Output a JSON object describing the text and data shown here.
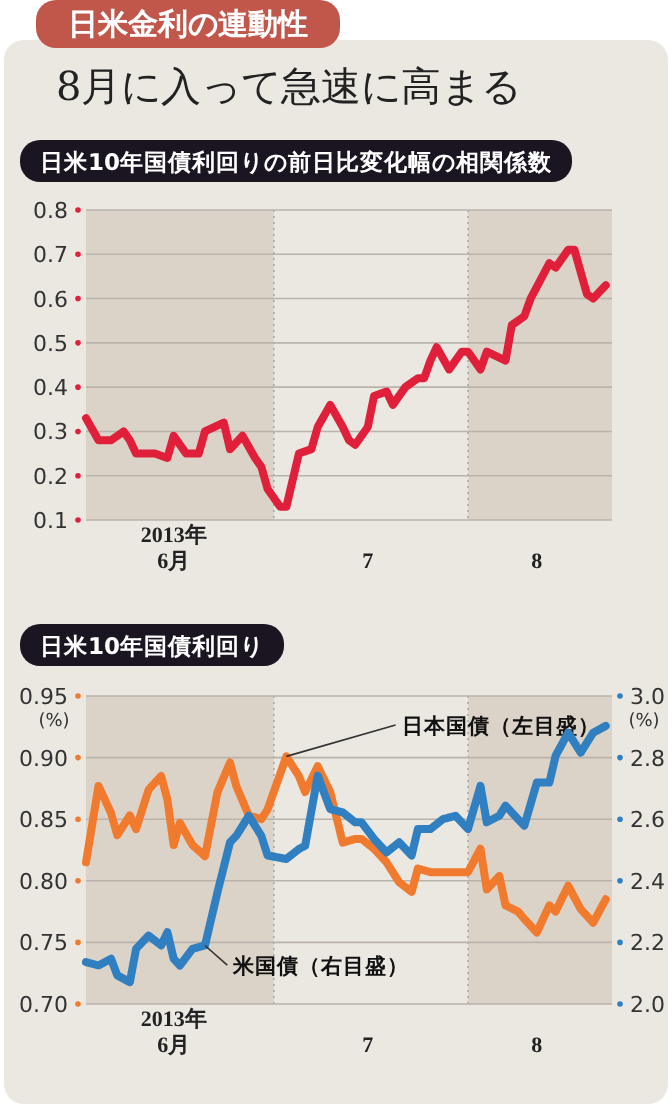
{
  "chart_data": [
    {
      "type": "line",
      "title": "日米10年国債利回りの前日比変化幅の相関係数",
      "annotations": [
        "日米金利の連動性",
        "8月に入って急速に高まる"
      ],
      "x": [
        "2013-06-01",
        "2013-06-03",
        "2013-06-05",
        "2013-06-07",
        "2013-06-08",
        "2013-06-09",
        "2013-06-12",
        "2013-06-14",
        "2013-06-15",
        "2013-06-17",
        "2013-06-19",
        "2013-06-20",
        "2013-06-23",
        "2013-06-24",
        "2013-06-26",
        "2013-06-28",
        "2013-06-29",
        "2013-06-30",
        "2013-07-02",
        "2013-07-03",
        "2013-07-05",
        "2013-07-07",
        "2013-07-08",
        "2013-07-10",
        "2013-07-12",
        "2013-07-13",
        "2013-07-14",
        "2013-07-16",
        "2013-07-17",
        "2013-07-19",
        "2013-07-20",
        "2013-07-22",
        "2013-07-24",
        "2013-07-25",
        "2013-07-26",
        "2013-07-27",
        "2013-07-29",
        "2013-07-31",
        "2013-08-01",
        "2013-08-03",
        "2013-08-04",
        "2013-08-07",
        "2013-08-08",
        "2013-08-10",
        "2013-08-11",
        "2013-08-14",
        "2013-08-15",
        "2013-08-17",
        "2013-08-18",
        "2013-08-20",
        "2013-08-21",
        "2013-08-23"
      ],
      "series": [
        {
          "color": "#e0203a",
          "values": [
            0.33,
            0.28,
            0.28,
            0.3,
            0.28,
            0.25,
            0.25,
            0.24,
            0.29,
            0.25,
            0.25,
            0.3,
            0.32,
            0.26,
            0.29,
            0.24,
            0.22,
            0.17,
            0.13,
            0.13,
            0.25,
            0.26,
            0.31,
            0.36,
            0.31,
            0.28,
            0.27,
            0.31,
            0.38,
            0.39,
            0.36,
            0.4,
            0.42,
            0.42,
            0.46,
            0.49,
            0.44,
            0.48,
            0.48,
            0.44,
            0.48,
            0.46,
            0.54,
            0.56,
            0.6,
            0.68,
            0.67,
            0.71,
            0.71,
            0.61,
            0.6,
            0.63
          ]
        }
      ],
      "xlim": [
        "2013-06-01",
        "2013-08-24"
      ],
      "xticks": [
        {
          "value": "2013-06-15",
          "label": "2013年\n6月"
        },
        {
          "value": "2013-07-16",
          "label": "7"
        },
        {
          "value": "2013-08-12",
          "label": "8"
        }
      ],
      "ylim": [
        0.1,
        0.8
      ],
      "yticks": [
        0.1,
        0.2,
        0.3,
        0.4,
        0.5,
        0.6,
        0.7,
        0.8
      ],
      "grid": "y",
      "ref_lines": [
        {
          "axis": "x",
          "value": "2013-07-01",
          "color": "#aaaaaa",
          "line_style": "dotted"
        },
        {
          "axis": "x",
          "value": "2013-08-01",
          "color": "#aaaaaa",
          "line_style": "dotted"
        }
      ],
      "bands": [
        {
          "axis": "x",
          "from": "2013-06-01",
          "to": "2013-07-01",
          "color": "#dcd3c8"
        },
        {
          "axis": "x",
          "from": "2013-08-01",
          "to": "2013-08-24",
          "color": "#dcd3c8"
        }
      ]
    },
    {
      "type": "line",
      "title": "日米10年国債利回り",
      "ylabel": "(%)",
      "y2label": "(%)",
      "x": [
        "2013-06-01",
        "2013-06-03",
        "2013-06-05",
        "2013-06-06",
        "2013-06-08",
        "2013-06-09",
        "2013-06-11",
        "2013-06-13",
        "2013-06-14",
        "2013-06-15",
        "2013-06-16",
        "2013-06-18",
        "2013-06-20",
        "2013-06-22",
        "2013-06-24",
        "2013-06-25",
        "2013-06-27",
        "2013-06-29",
        "2013-06-30",
        "2013-07-03",
        "2013-07-05",
        "2013-07-06",
        "2013-07-08",
        "2013-07-10",
        "2013-07-12",
        "2013-07-14",
        "2013-07-15",
        "2013-07-17",
        "2013-07-19",
        "2013-07-21",
        "2013-07-23",
        "2013-07-24",
        "2013-07-26",
        "2013-07-28",
        "2013-07-30",
        "2013-08-01",
        "2013-08-03",
        "2013-08-04",
        "2013-08-06",
        "2013-08-07",
        "2013-08-09",
        "2013-08-10",
        "2013-08-12",
        "2013-08-14",
        "2013-08-15",
        "2013-08-17",
        "2013-08-19",
        "2013-08-21",
        "2013-08-23"
      ],
      "series": [
        {
          "name": "日本国債（左目盛）",
          "color": "#f07b2e",
          "values": [
            0.815,
            0.877,
            0.855,
            0.837,
            0.853,
            0.842,
            0.874,
            0.885,
            0.866,
            0.829,
            0.847,
            0.829,
            0.82,
            0.872,
            0.896,
            0.877,
            0.853,
            0.85,
            0.858,
            0.901,
            0.885,
            0.872,
            0.893,
            0.872,
            0.831,
            0.834,
            0.834,
            0.826,
            0.815,
            0.799,
            0.791,
            0.81,
            0.807,
            0.807,
            0.807,
            0.807,
            0.826,
            0.793,
            0.804,
            0.78,
            0.775,
            0.769,
            0.758,
            0.78,
            0.775,
            0.796,
            0.777,
            0.766,
            0.785
          ]
        },
        {
          "name": "米国債（右目盛）",
          "color": "#2f7fc1",
          "axis": "y2",
          "values": [
            2.136,
            2.125,
            2.147,
            2.093,
            2.071,
            2.179,
            2.222,
            2.19,
            2.233,
            2.147,
            2.125,
            2.179,
            2.19,
            2.363,
            2.525,
            2.546,
            2.611,
            2.546,
            2.482,
            2.471,
            2.503,
            2.514,
            2.741,
            2.633,
            2.622,
            2.59,
            2.59,
            2.536,
            2.492,
            2.525,
            2.482,
            2.568,
            2.568,
            2.6,
            2.611,
            2.568,
            2.708,
            2.59,
            2.611,
            2.644,
            2.6,
            2.579,
            2.719,
            2.719,
            2.806,
            2.881,
            2.816,
            2.881,
            2.903
          ]
        }
      ],
      "xlim": [
        "2013-06-01",
        "2013-08-24"
      ],
      "xticks": [
        {
          "value": "2013-06-15",
          "label": "2013年\n6月"
        },
        {
          "value": "2013-07-16",
          "label": "7"
        },
        {
          "value": "2013-08-12",
          "label": "8"
        }
      ],
      "ylim": [
        0.7,
        0.95
      ],
      "yticks": [
        {
          "value": 0.7,
          "label": "0.70"
        },
        0.75,
        {
          "value": 0.8,
          "label": "0.80"
        },
        0.85,
        {
          "value": 0.9,
          "label": "0.90"
        },
        0.95
      ],
      "y2lim": [
        2.0,
        3.0
      ],
      "y2ticks": [
        {
          "value": 2.0,
          "label": "2.0"
        },
        2.2,
        2.4,
        2.6,
        2.8,
        {
          "value": 3.0,
          "label": "3.0"
        }
      ],
      "grid": "y",
      "ref_lines": [
        {
          "axis": "x",
          "value": "2013-07-01",
          "color": "#aaaaaa",
          "line_style": "dotted"
        },
        {
          "axis": "x",
          "value": "2013-08-01",
          "color": "#aaaaaa",
          "line_style": "dotted"
        }
      ],
      "bands": [
        {
          "axis": "x",
          "from": "2013-06-01",
          "to": "2013-07-01",
          "color": "#dcd3c8"
        },
        {
          "axis": "x",
          "from": "2013-08-01",
          "to": "2013-08-24",
          "color": "#dcd3c8"
        }
      ]
    }
  ]
}
